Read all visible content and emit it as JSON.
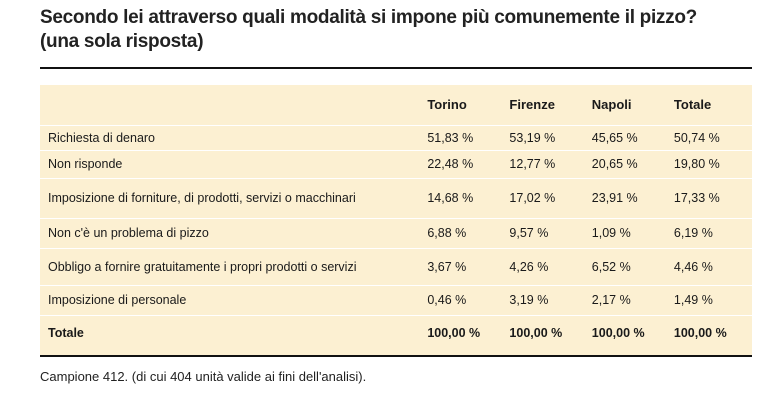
{
  "header": {
    "title": "Secondo lei attraverso quali modalità si impone più comunemente il pizzo? (una sola risposta)"
  },
  "table": {
    "columns": [
      "Torino",
      "Firenze",
      "Napoli",
      "Totale"
    ],
    "rows": [
      [
        "Richiesta di denaro",
        "51,83 %",
        "53,19 %",
        "45,65 %",
        "50,74 %"
      ],
      [
        "Non risponde",
        "22,48 %",
        "12,77 %",
        "20,65 %",
        "19,80 %"
      ],
      [
        "Imposizione di forniture, di prodotti, servizi o macchinari",
        "14,68 %",
        "17,02 %",
        "23,91 %",
        "17,33 %"
      ],
      [
        "Non c'è un problema di pizzo",
        "6,88 %",
        "9,57 %",
        "1,09 %",
        "6,19 %"
      ],
      [
        "Obbligo a fornire gratuitamente i propri prodotti o servizi",
        "3,67 %",
        "4,26 %",
        "6,52 %",
        "4,46 %"
      ],
      [
        "Imposizione di personale",
        "0,46 %",
        "3,19 %",
        "2,17 %",
        "1,49 %"
      ]
    ],
    "total": [
      "Totale",
      "100,00 %",
      "100,00 %",
      "100,00 %",
      "100,00 %"
    ]
  },
  "footnote": "Campione 412. (di cui 404 unità valide ai fini dell'analisi)."
}
